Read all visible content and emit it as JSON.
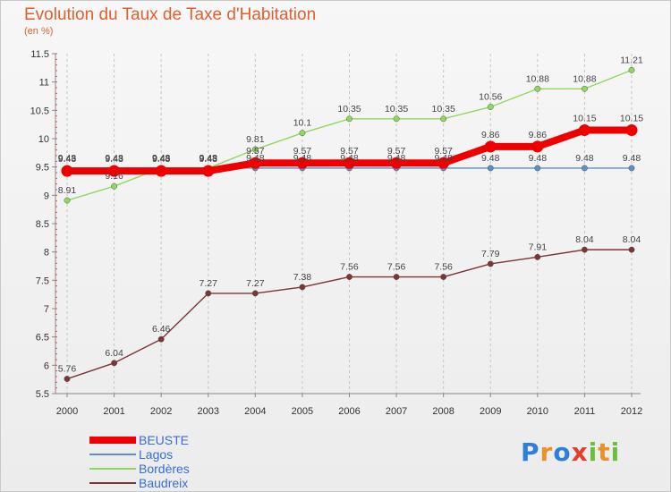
{
  "header": {
    "title": "Evolution du Taux de Taxe d'Habitation",
    "unit": "(en %)"
  },
  "brand": {
    "text": "Proxiti",
    "letters": [
      "P",
      "r",
      "o",
      "x",
      "i",
      "t",
      "i"
    ],
    "colors": [
      "#2f7fd8",
      "#e8932a",
      "#2f7fd8",
      "#e23d2d",
      "#6bbf3a",
      "#e8932a",
      "#6bbf3a"
    ]
  },
  "chart_data": {
    "type": "line",
    "title": "Evolution du Taux de Taxe d'Habitation",
    "ylabel": "(en %)",
    "x": [
      "2000",
      "2001",
      "2002",
      "2003",
      "2004",
      "2005",
      "2006",
      "2007",
      "2008",
      "2009",
      "2010",
      "2011",
      "2012"
    ],
    "ylim": [
      5.5,
      11.5
    ],
    "yticks": [
      "5.5",
      "6",
      "6.5",
      "7",
      "7.5",
      "8",
      "8.5",
      "9",
      "9.5",
      "10",
      "10.5",
      "11",
      "11.5"
    ],
    "grid": "vertical dashed",
    "legend": "bottom-left",
    "series": [
      {
        "name": "BEUSTE",
        "color": "#ee0000",
        "values": [
          9.43,
          9.43,
          9.43,
          9.43,
          9.57,
          9.57,
          9.57,
          9.57,
          9.57,
          9.86,
          9.86,
          10.15,
          10.15
        ],
        "labels": [
          "9.43",
          "9.43",
          "9.43",
          "9.43",
          "9.57",
          "9.57",
          "9.57",
          "9.57",
          "9.57",
          "9.86",
          "9.86",
          "10.15",
          "10.15"
        ]
      },
      {
        "name": "Lagos",
        "color": "#5b8fc8",
        "values": [
          9.48,
          9.48,
          9.48,
          9.48,
          9.48,
          9.48,
          9.48,
          9.48,
          9.48,
          9.48,
          9.48,
          9.48,
          9.48
        ],
        "labels": [
          "9.48",
          "9.48",
          "9.48",
          "9.48",
          "9.48",
          "9.48",
          "9.48",
          "9.48",
          "9.48",
          "9.48",
          "9.48",
          "9.48",
          "9.48"
        ]
      },
      {
        "name": "Bordères",
        "color": "#8fd860",
        "values": [
          8.91,
          9.16,
          9.48,
          9.48,
          9.81,
          10.1,
          10.35,
          10.35,
          10.35,
          10.56,
          10.88,
          10.88,
          11.21
        ],
        "labels": [
          "8.91",
          "9.16",
          "9.48",
          "9.48",
          "9.81",
          "10.1",
          "10.35",
          "10.35",
          "10.35",
          "10.56",
          "10.88",
          "10.88",
          "11.21"
        ]
      },
      {
        "name": "Baudreix",
        "color": "#7a3535",
        "values": [
          5.76,
          6.04,
          6.46,
          7.27,
          7.27,
          7.38,
          7.56,
          7.56,
          7.56,
          7.79,
          7.91,
          8.04,
          8.04
        ],
        "labels": [
          "5.76",
          "6.04",
          "6.46",
          "7.27",
          "7.27",
          "7.38",
          "7.56",
          "7.56",
          "7.56",
          "7.79",
          "7.91",
          "8.04",
          "8.04"
        ]
      }
    ]
  }
}
